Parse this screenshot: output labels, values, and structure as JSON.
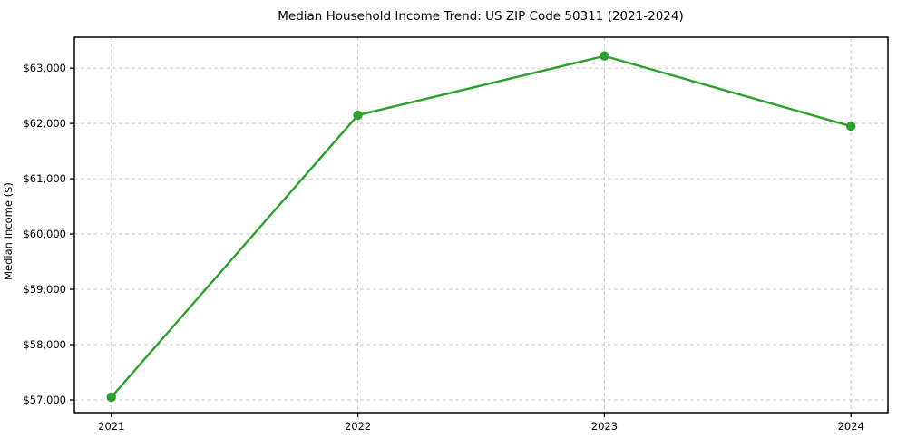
{
  "chart_data": {
    "type": "line",
    "title": "Median Household Income Trend: US ZIP Code 50311 (2021-2024)",
    "xlabel": "",
    "ylabel": "Median Income ($)",
    "x": [
      2021,
      2022,
      2023,
      2024
    ],
    "values": [
      57050,
      62150,
      63220,
      61950
    ],
    "xtick_labels": [
      "2021",
      "2022",
      "2023",
      "2024"
    ],
    "ytick_values": [
      57000,
      58000,
      59000,
      60000,
      61000,
      62000,
      63000
    ],
    "ytick_labels": [
      "$57,000",
      "$58,000",
      "$59,000",
      "$60,000",
      "$61,000",
      "$62,000",
      "$63,000"
    ],
    "xlim": [
      2020.85,
      2024.15
    ],
    "ylim": [
      56770,
      63560
    ],
    "grid": true,
    "grid_style": "dashed",
    "legend_position": "none",
    "colors": {
      "line": "#2ca02c",
      "marker": "#2ca02c",
      "grid": "#c9c9c9",
      "spine": "#000000",
      "text": "#000000",
      "background": "#ffffff"
    }
  }
}
